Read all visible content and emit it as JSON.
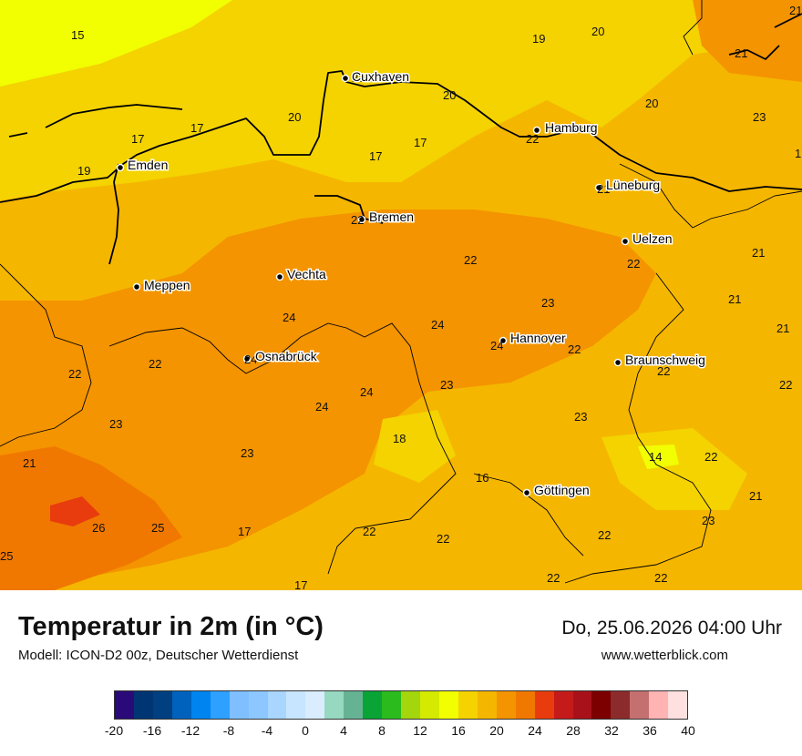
{
  "title": "Temperatur in 2m (in °C)",
  "model_info": "Modell: ICON-D2 00z, Deutscher Wetterdienst",
  "datetime": "Do, 25.06.2026 04:00 Uhr",
  "website": "www.wetterblick.com",
  "cities": [
    {
      "name": "Cuxhaven",
      "value": "20"
    },
    {
      "name": "Hamburg",
      "value": "22"
    },
    {
      "name": "Emden",
      "value": "19"
    },
    {
      "name": "Lüneburg",
      "value": "21"
    },
    {
      "name": "Bremen",
      "value": "22"
    },
    {
      "name": "Uelzen",
      "value": "22"
    },
    {
      "name": "Vechta",
      "value": ""
    },
    {
      "name": "Meppen",
      "value": ""
    },
    {
      "name": "Hannover",
      "value": "24"
    },
    {
      "name": "Osnabrück",
      "value": "24"
    },
    {
      "name": "Braunschweig",
      "value": "22"
    },
    {
      "name": "Göttingen",
      "value": ""
    }
  ],
  "values": [
    "15",
    "19",
    "20",
    "21",
    "21",
    "23",
    "20",
    "20",
    "17",
    "17",
    "17",
    "17",
    "20",
    "19",
    "22",
    "17",
    "22",
    "21",
    "22",
    "23",
    "21",
    "24",
    "24",
    "21",
    "22",
    "22",
    "22",
    "23",
    "24",
    "24",
    "23",
    "22",
    "23",
    "18",
    "14",
    "22",
    "23",
    "21",
    "16",
    "21",
    "26",
    "25",
    "17",
    "22",
    "22",
    "23",
    "25",
    "17",
    "22",
    "22",
    "22"
  ],
  "legend": {
    "colors": [
      "#2a0a78",
      "#003573",
      "#003f80",
      "#0062bd",
      "#0084f0",
      "#2ea0ff",
      "#7fbfff",
      "#8cc8ff",
      "#a8d6ff",
      "#c7e5ff",
      "#d9edff",
      "#96d9c0",
      "#66b394",
      "#0aa336",
      "#2bbb1c",
      "#a3d60d",
      "#d4ea00",
      "#f2ff00",
      "#f4d300",
      "#f5b600",
      "#f49400",
      "#f17800",
      "#e83c0e",
      "#c41a1a",
      "#a8111a",
      "#7d0000",
      "#8c2b2b",
      "#c47070",
      "#ffb3b3",
      "#ffe0e0"
    ],
    "ticks": [
      "-20",
      "-16",
      "-12",
      "-8",
      "-4",
      "0",
      "4",
      "8",
      "12",
      "16",
      "20",
      "24",
      "28",
      "32",
      "36",
      "40"
    ]
  }
}
